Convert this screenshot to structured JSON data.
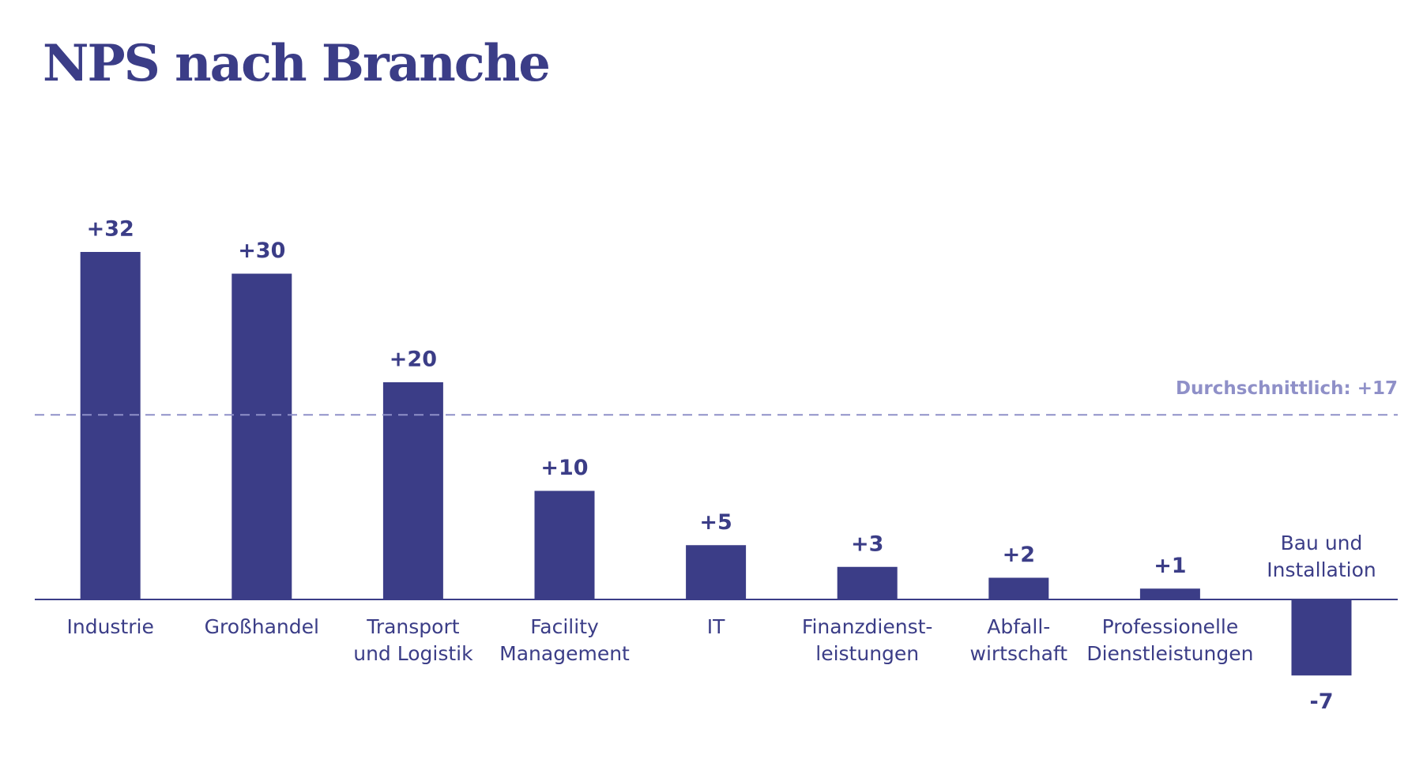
{
  "chart_data": {
    "type": "bar",
    "title": "NPS nach Branche",
    "categories": [
      [
        "Industrie"
      ],
      [
        "Großhandel"
      ],
      [
        "Transport",
        "und Logistik"
      ],
      [
        "Facility",
        "Management"
      ],
      [
        "IT"
      ],
      [
        "Finanzdienst-",
        "leistungen"
      ],
      [
        "Abfall-",
        "wirtschaft"
      ],
      [
        "Professionelle",
        "Dienstleistungen"
      ],
      [
        "Bau und",
        "Installation"
      ]
    ],
    "values": [
      32,
      30,
      20,
      10,
      5,
      3,
      2,
      1,
      -7
    ],
    "value_labels": [
      "+32",
      "+30",
      "+20",
      "+10",
      "+5",
      "+3",
      "+2",
      "+1",
      "-7"
    ],
    "color": "#3b3d87",
    "ylim": [
      -10,
      40
    ],
    "reference_line": {
      "value": 17,
      "label": "Durchschnittlich: +17",
      "color": "#8f90c8"
    }
  }
}
